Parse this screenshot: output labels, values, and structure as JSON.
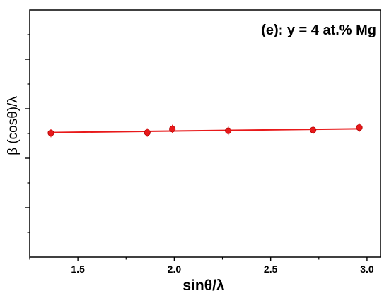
{
  "chart_data": {
    "type": "scatter",
    "annotation": "(e): y = 4 at.% Mg",
    "xlabel": "sinθ/λ",
    "ylabel": "β (cosθ)/λ",
    "xlim": [
      1.25,
      3.07
    ],
    "ylim": [
      0,
      10
    ],
    "x_ticks": [
      1.5,
      2.0,
      2.5,
      3.0
    ],
    "x_tick_labels": [
      "1.5",
      "2.0",
      "2.5",
      "3.0"
    ],
    "y_major_ticks": [
      2,
      4,
      6,
      8
    ],
    "y_minor_ticks": [
      1,
      3,
      5,
      7,
      9
    ],
    "y_tick_labels_shown": false,
    "grid": false,
    "series": [
      {
        "points": [
          {
            "x": 1.36,
            "y": 5.02
          },
          {
            "x": 1.86,
            "y": 5.04
          },
          {
            "x": 1.99,
            "y": 5.18
          },
          {
            "x": 2.28,
            "y": 5.11
          },
          {
            "x": 2.72,
            "y": 5.14
          },
          {
            "x": 2.96,
            "y": 5.24
          }
        ],
        "fit": {
          "x": [
            1.36,
            2.96
          ],
          "y": [
            5.04,
            5.19
          ]
        }
      }
    ],
    "colors": {
      "series": "#e8191a",
      "axes": "#000000"
    }
  }
}
